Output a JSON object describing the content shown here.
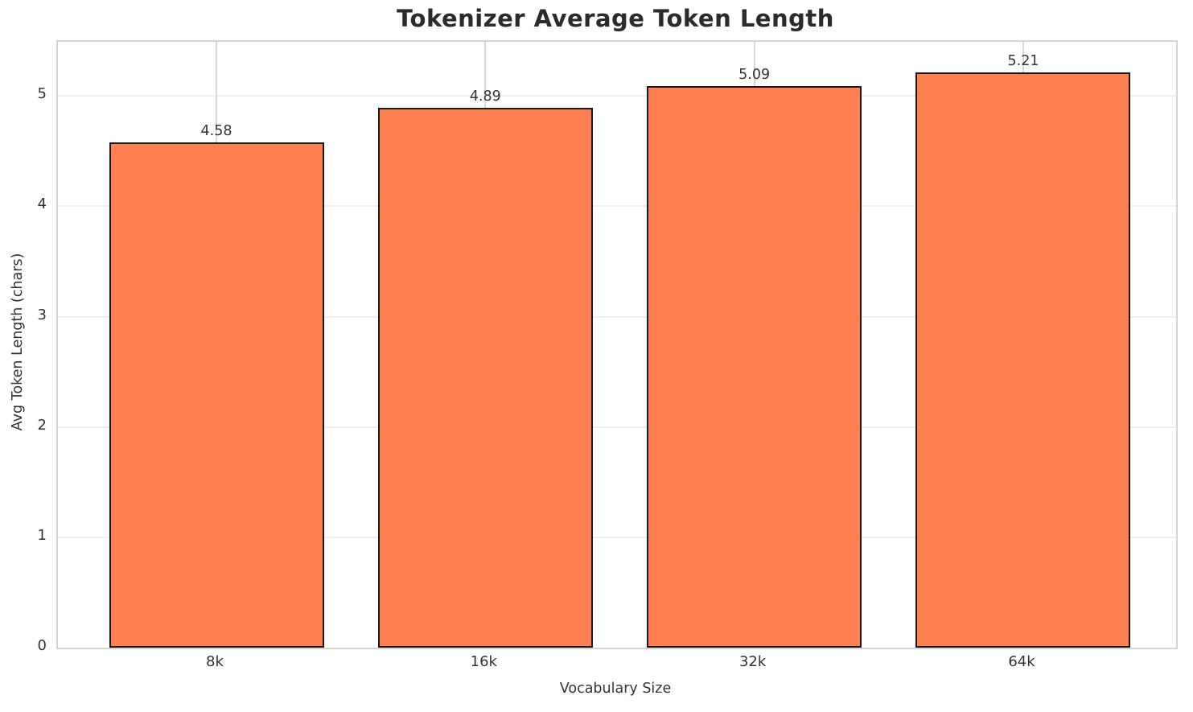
{
  "chart_data": {
    "type": "bar",
    "title": "Tokenizer Average Token Length",
    "xlabel": "Vocabulary Size",
    "ylabel": "Avg Token Length (chars)",
    "categories": [
      "8k",
      "16k",
      "32k",
      "64k"
    ],
    "values": [
      4.58,
      4.89,
      5.09,
      5.21
    ],
    "value_labels": [
      "4.58",
      "4.89",
      "5.09",
      "5.21"
    ],
    "ytick_labels": [
      "0",
      "1",
      "2",
      "3",
      "4",
      "5"
    ],
    "yticks": [
      0,
      1,
      2,
      3,
      4,
      5
    ],
    "ylim": [
      0,
      5.49
    ],
    "grid": true,
    "legend": "none",
    "colors": {
      "bar_fill": "#FF7F50",
      "bar_edge": "#1a1a1a",
      "title_text": "#2b2b2b",
      "tick_text": "#333333",
      "spine": "#d4d4d4",
      "hgrid": "#efefef",
      "vgrid": "#d9d9d9",
      "background": "#ffffff"
    }
  }
}
